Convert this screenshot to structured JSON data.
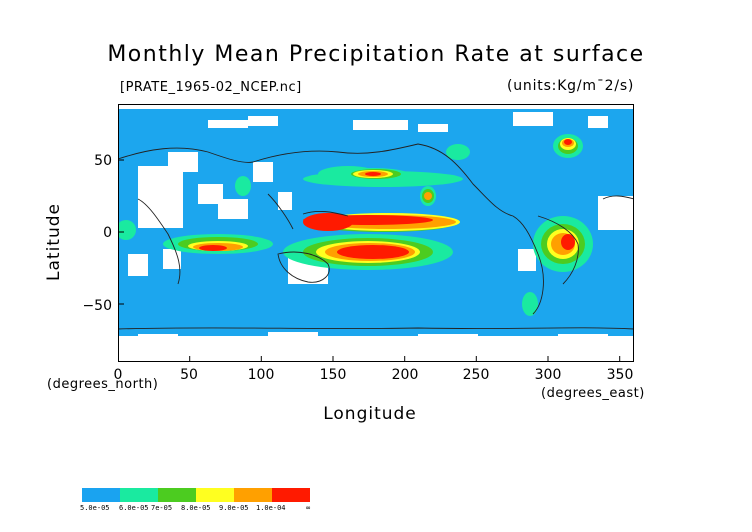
{
  "title": "Monthly Mean Precipitation Rate at surface",
  "filename": "[PRATE_1965-02_NCEP.nc]",
  "units": "(units:Kg/m¯2/s)",
  "axes": {
    "y_title": "Latitude",
    "y_unit": "(degrees_north)",
    "y_ticks": [
      "50",
      "0",
      "−50"
    ],
    "x_title": "Longitude",
    "x_unit": "(degrees_east)",
    "x_ticks": [
      "0",
      "50",
      "100",
      "150",
      "200",
      "250",
      "300",
      "350"
    ]
  },
  "legend": {
    "labels": [
      "5.0e-05",
      "6.0e-05",
      "7e-05",
      "8.0e-05",
      "9.0e-05",
      "1.0e-04",
      "∞"
    ],
    "colors": [
      "#1aa3f0",
      "#1aeaa0",
      "#4ccc20",
      "#ffff20",
      "#ffa000",
      "#ff1a00"
    ]
  },
  "colors": {
    "ocean_base": "#1ca6ee",
    "no_data": "#ffffff",
    "coast": "#222222"
  }
}
